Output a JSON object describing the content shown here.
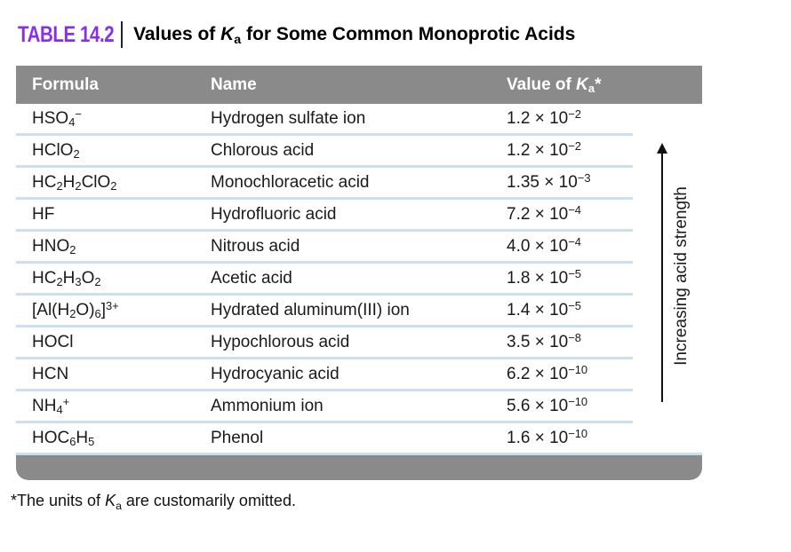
{
  "title": {
    "label": "TABLE 14.2",
    "subtitle_rich": [
      [
        "Values of ",
        ""
      ],
      [
        "K",
        "i"
      ],
      [
        "a",
        "sub"
      ],
      [
        " for Some Common Monoprotic Acids",
        ""
      ]
    ]
  },
  "colors": {
    "title_purple": "#8730EC",
    "header_bar_gray": "#8A8A8A",
    "row_divider_blue": "#CBDFF2"
  },
  "table": {
    "headers": {
      "formula": "Formula",
      "name": "Name",
      "value_rich": [
        [
          "Value of ",
          ""
        ],
        [
          "K",
          "i"
        ],
        [
          "a",
          "sub"
        ],
        [
          "*",
          ""
        ]
      ]
    },
    "rows": [
      {
        "formula": [
          [
            "HSO",
            ""
          ],
          [
            "4",
            "sub"
          ],
          [
            "−",
            "sup"
          ]
        ],
        "name": "Hydrogen sulfate ion",
        "value": [
          [
            "1.2 × 10",
            ""
          ],
          [
            "−2",
            "sup"
          ]
        ]
      },
      {
        "formula": [
          [
            "HClO",
            ""
          ],
          [
            "2",
            "sub"
          ]
        ],
        "name": "Chlorous acid",
        "value": [
          [
            "1.2 × 10",
            ""
          ],
          [
            "−2",
            "sup"
          ]
        ]
      },
      {
        "formula": [
          [
            "HC",
            ""
          ],
          [
            "2",
            "sub"
          ],
          [
            "H",
            ""
          ],
          [
            "2",
            "sub"
          ],
          [
            "ClO",
            ""
          ],
          [
            "2",
            "sub"
          ]
        ],
        "name": "Monochloracetic acid",
        "value": [
          [
            "1.35 × 10",
            ""
          ],
          [
            "−3",
            "sup"
          ]
        ]
      },
      {
        "formula": [
          [
            "HF",
            ""
          ]
        ],
        "name": "Hydrofluoric acid",
        "value": [
          [
            "7.2 × 10",
            ""
          ],
          [
            "−4",
            "sup"
          ]
        ]
      },
      {
        "formula": [
          [
            "HNO",
            ""
          ],
          [
            "2",
            "sub"
          ]
        ],
        "name": "Nitrous acid",
        "value": [
          [
            "4.0 × 10",
            ""
          ],
          [
            "−4",
            "sup"
          ]
        ]
      },
      {
        "formula": [
          [
            "HC",
            ""
          ],
          [
            "2",
            "sub"
          ],
          [
            "H",
            ""
          ],
          [
            "3",
            "sub"
          ],
          [
            "O",
            ""
          ],
          [
            "2",
            "sub"
          ]
        ],
        "name": "Acetic acid",
        "value": [
          [
            "1.8 × 10",
            ""
          ],
          [
            "−5",
            "sup"
          ]
        ]
      },
      {
        "formula": [
          [
            "[Al(H",
            ""
          ],
          [
            "2",
            "sub"
          ],
          [
            "O)",
            ""
          ],
          [
            "6",
            "sub"
          ],
          [
            "]",
            ""
          ],
          [
            "3+",
            "sup"
          ]
        ],
        "name": "Hydrated aluminum(III) ion",
        "value": [
          [
            "1.4 × 10",
            ""
          ],
          [
            "−5",
            "sup"
          ]
        ]
      },
      {
        "formula": [
          [
            "HOCl",
            ""
          ]
        ],
        "name": "Hypochlorous acid",
        "value": [
          [
            "3.5 × 10",
            ""
          ],
          [
            "−8",
            "sup"
          ]
        ]
      },
      {
        "formula": [
          [
            "HCN",
            ""
          ]
        ],
        "name": "Hydrocyanic acid",
        "value": [
          [
            "6.2 × 10",
            ""
          ],
          [
            "−10",
            "sup"
          ]
        ]
      },
      {
        "formula": [
          [
            "NH",
            ""
          ],
          [
            "4",
            "sub"
          ],
          [
            "+",
            "sup"
          ]
        ],
        "name": "Ammonium ion",
        "value": [
          [
            "5.6 × 10",
            ""
          ],
          [
            "−10",
            "sup"
          ]
        ]
      },
      {
        "formula": [
          [
            "HOC",
            ""
          ],
          [
            "6",
            "sub"
          ],
          [
            "H",
            ""
          ],
          [
            "5",
            "sub"
          ]
        ],
        "name": "Phenol",
        "value": [
          [
            "1.6 × 10",
            ""
          ],
          [
            "−10",
            "sup"
          ]
        ]
      }
    ]
  },
  "arrow": {
    "label": "Increasing acid strength"
  },
  "footnote_rich": [
    [
      "*The units of ",
      ""
    ],
    [
      "K",
      "i"
    ],
    [
      "a",
      "sub"
    ],
    [
      " are customarily omitted.",
      ""
    ]
  ]
}
